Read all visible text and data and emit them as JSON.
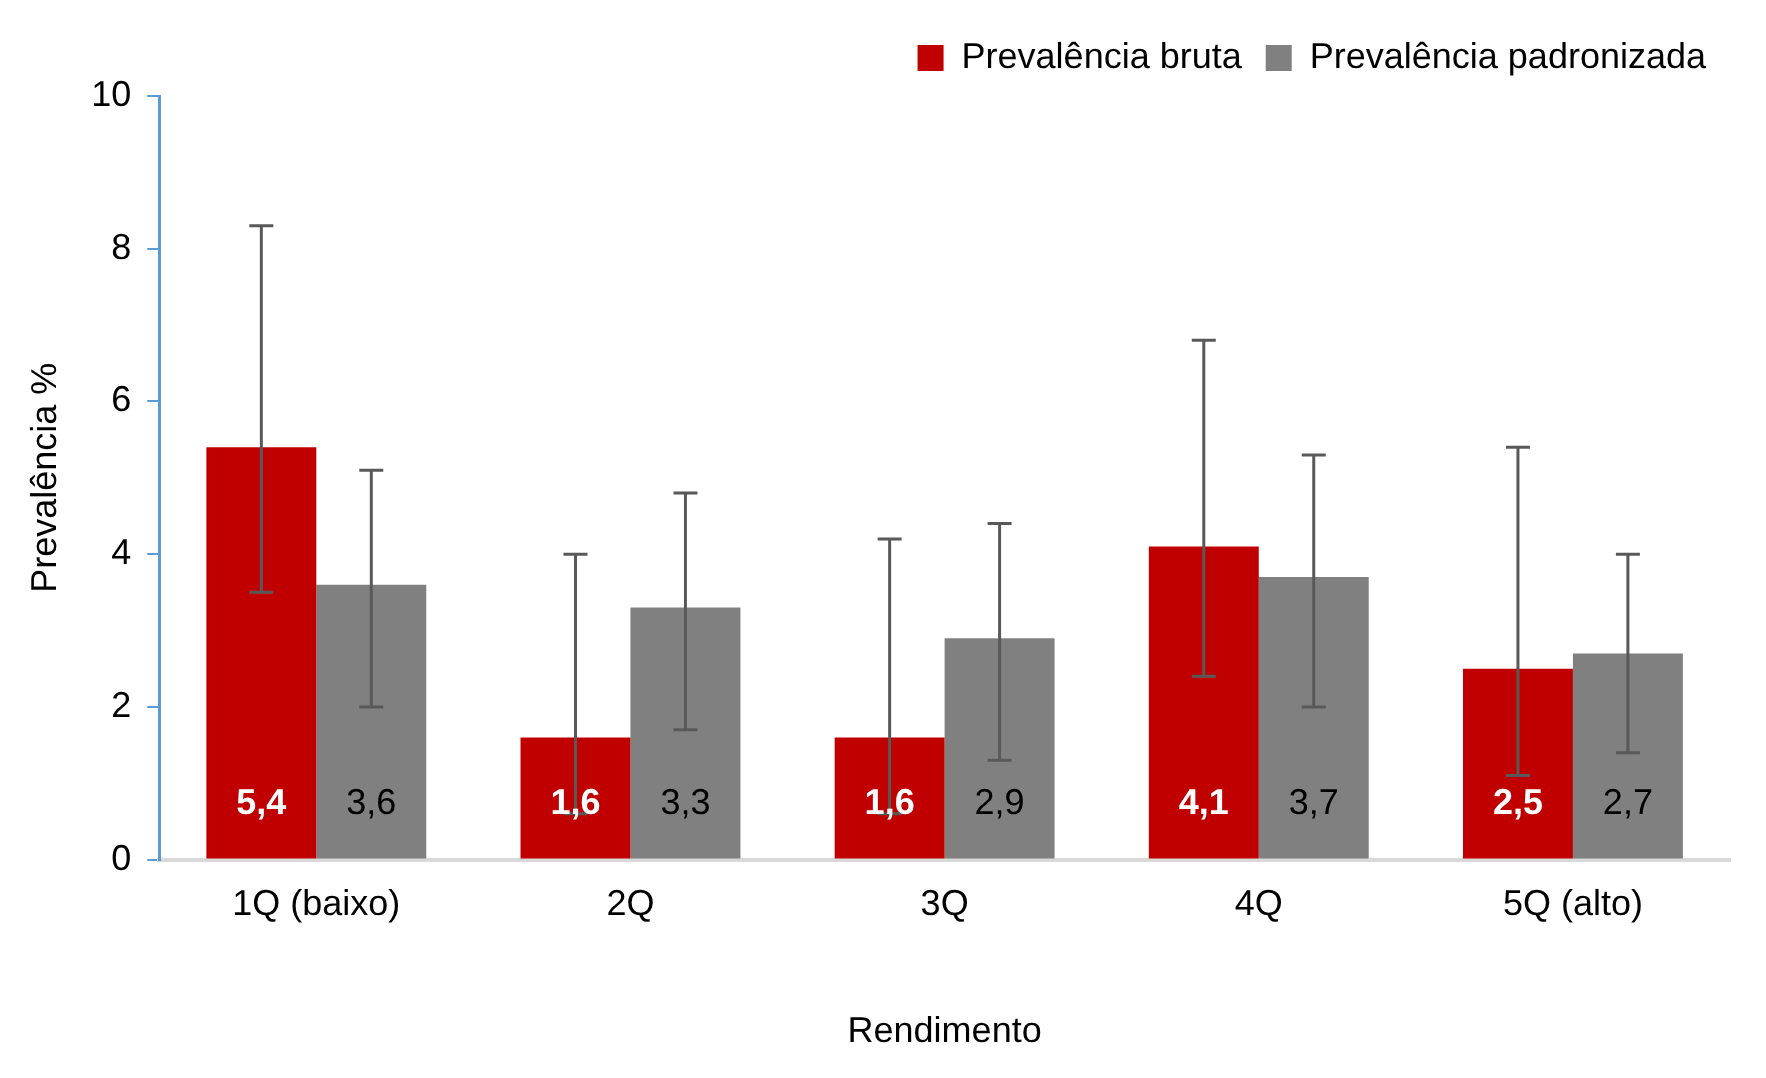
{
  "chart_data": {
    "type": "bar",
    "xlabel": "Rendimento",
    "ylabel": "Prevalência %",
    "categories": [
      "1Q (baixo)",
      "2Q",
      "3Q",
      "4Q",
      "5Q (alto)"
    ],
    "series": [
      {
        "name": "Prevalência bruta",
        "color": "#c00000",
        "values": [
          5.4,
          1.6,
          1.6,
          4.1,
          2.5
        ],
        "value_labels": [
          "5,4",
          "1,6",
          "1,6",
          "4,1",
          "2,5"
        ],
        "errors": [
          [
            3.5,
            8.3
          ],
          [
            0.6,
            4.0
          ],
          [
            0.6,
            4.2
          ],
          [
            2.4,
            6.8
          ],
          [
            1.1,
            5.4
          ]
        ]
      },
      {
        "name": "Prevalência padronizada",
        "color": "#808080",
        "values": [
          3.6,
          3.3,
          2.9,
          3.7,
          2.7
        ],
        "value_labels": [
          "3,6",
          "3,3",
          "2,9",
          "3,7",
          "2,7"
        ],
        "errors": [
          [
            2.0,
            5.1
          ],
          [
            1.7,
            4.8
          ],
          [
            1.3,
            4.4
          ],
          [
            2.0,
            5.3
          ],
          [
            1.4,
            4.0
          ]
        ]
      }
    ],
    "ylim": [
      0,
      10
    ],
    "yticks": [
      0,
      2,
      4,
      6,
      8,
      10
    ],
    "grid": false,
    "legend": "top right"
  }
}
